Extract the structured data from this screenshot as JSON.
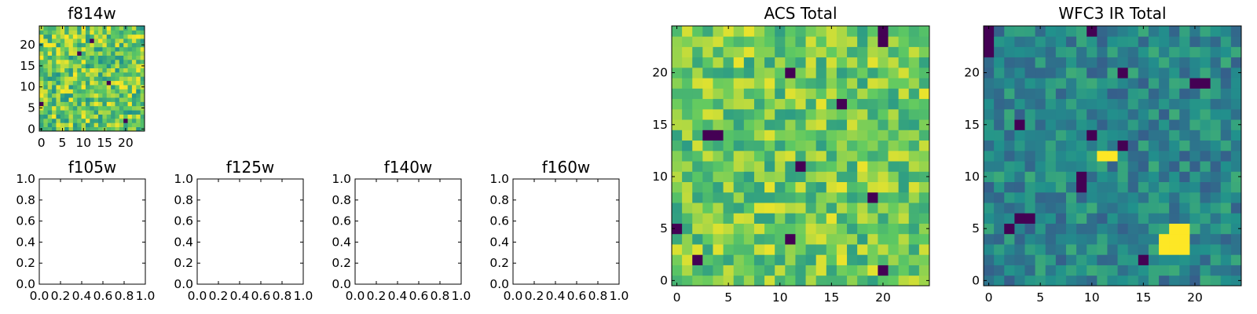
{
  "chart_data": [
    {
      "type": "heatmap",
      "title": "f814w",
      "colormap": "viridis",
      "shape": [
        25,
        25
      ],
      "xlim": [
        -0.5,
        24.5
      ],
      "ylim": [
        -0.5,
        24.5
      ],
      "xticks": [
        0,
        5,
        10,
        15,
        20
      ],
      "yticks": [
        0,
        5,
        10,
        15,
        20
      ],
      "value_range": [
        0.5,
        1.0
      ],
      "hot_pixels": [
        [
          0,
          6
        ],
        [
          9,
          18
        ],
        [
          20,
          2
        ],
        [
          12,
          21
        ],
        [
          16,
          11
        ]
      ],
      "dim_pixels": []
    },
    {
      "type": "empty",
      "title": "f105w",
      "xlim": [
        0.0,
        1.0
      ],
      "ylim": [
        0.0,
        1.0
      ],
      "xticks": [
        "0.0",
        "0.2",
        "0.4",
        "0.6",
        "0.8",
        "1.0"
      ],
      "yticks": [
        "0.0",
        "0.2",
        "0.4",
        "0.6",
        "0.8",
        "1.0"
      ]
    },
    {
      "type": "empty",
      "title": "f125w",
      "xlim": [
        0.0,
        1.0
      ],
      "ylim": [
        0.0,
        1.0
      ],
      "xticks": [
        "0.0",
        "0.2",
        "0.4",
        "0.6",
        "0.8",
        "1.0"
      ],
      "yticks": [
        "0.0",
        "0.2",
        "0.4",
        "0.6",
        "0.8",
        "1.0"
      ]
    },
    {
      "type": "empty",
      "title": "f140w",
      "xlim": [
        0.0,
        1.0
      ],
      "ylim": [
        0.0,
        1.0
      ],
      "xticks": [
        "0.0",
        "0.2",
        "0.4",
        "0.6",
        "0.8",
        "1.0"
      ],
      "yticks": [
        "0.0",
        "0.2",
        "0.4",
        "0.6",
        "0.8",
        "1.0"
      ]
    },
    {
      "type": "empty",
      "title": "f160w",
      "xlim": [
        0.0,
        1.0
      ],
      "ylim": [
        0.0,
        1.0
      ],
      "xticks": [
        "0.0",
        "0.2",
        "0.4",
        "0.6",
        "0.8",
        "1.0"
      ],
      "yticks": [
        "0.0",
        "0.2",
        "0.4",
        "0.6",
        "0.8",
        "1.0"
      ]
    },
    {
      "type": "heatmap",
      "title": "ACS Total",
      "colormap": "viridis",
      "shape": [
        25,
        25
      ],
      "xlim": [
        -0.5,
        24.5
      ],
      "ylim": [
        -0.5,
        24.5
      ],
      "xticks": [
        0,
        5,
        10,
        15,
        20
      ],
      "yticks": [
        0,
        5,
        10,
        15,
        20
      ],
      "value_range": [
        0.55,
        0.97
      ],
      "hot_pixels": [
        [
          20,
          24
        ],
        [
          20,
          23
        ],
        [
          11,
          20
        ],
        [
          16,
          17
        ],
        [
          3,
          14
        ],
        [
          4,
          14
        ],
        [
          12,
          11
        ],
        [
          19,
          8
        ],
        [
          0,
          5
        ],
        [
          11,
          4
        ],
        [
          20,
          1
        ],
        [
          2,
          2
        ]
      ],
      "dim_pixels": []
    },
    {
      "type": "heatmap",
      "title": "WFC3 IR Total",
      "colormap": "viridis",
      "shape": [
        25,
        25
      ],
      "xlim": [
        -0.5,
        24.5
      ],
      "ylim": [
        -0.5,
        24.5
      ],
      "xticks": [
        0,
        5,
        10,
        15,
        20
      ],
      "yticks": [
        0,
        5,
        10,
        15,
        20
      ],
      "value_range": [
        0.3,
        0.62
      ],
      "hot_pixels": [
        [
          0,
          24
        ],
        [
          0,
          23
        ],
        [
          0,
          22
        ],
        [
          10,
          24
        ],
        [
          13,
          20
        ],
        [
          20,
          19
        ],
        [
          21,
          19
        ],
        [
          3,
          15
        ],
        [
          10,
          14
        ],
        [
          13,
          13
        ],
        [
          9,
          10
        ],
        [
          9,
          9
        ],
        [
          3,
          6
        ],
        [
          4,
          6
        ],
        [
          2,
          5
        ],
        [
          15,
          2
        ]
      ],
      "dim_pixels": [
        [
          11,
          12
        ],
        [
          12,
          12
        ],
        [
          17,
          3
        ],
        [
          18,
          3
        ],
        [
          19,
          3
        ],
        [
          17,
          4
        ],
        [
          18,
          4
        ],
        [
          19,
          4
        ],
        [
          18,
          5
        ],
        [
          19,
          5
        ]
      ]
    }
  ]
}
